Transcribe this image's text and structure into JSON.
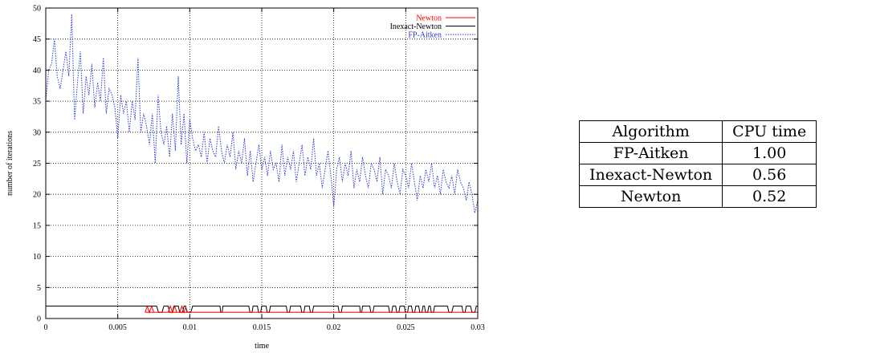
{
  "chart_data": {
    "type": "line",
    "xlabel": "time",
    "ylabel": "number of iterations",
    "xlim": [
      0,
      0.03
    ],
    "ylim": [
      0,
      50
    ],
    "x_ticks": [
      "0",
      "0.005",
      "0.01",
      "0.015",
      "0.02",
      "0.025",
      "0.03"
    ],
    "y_ticks": [
      "0",
      "5",
      "10",
      "15",
      "20",
      "25",
      "30",
      "35",
      "40",
      "45",
      "50"
    ],
    "grid": true,
    "legend_position": "top-right",
    "series": [
      {
        "name": "Newton",
        "color": "#ff0000",
        "style": "solid",
        "x": [
          0.0069,
          0.00705,
          0.0072,
          0.00735,
          0.0075,
          0.0085,
          0.00865,
          0.0088,
          0.00895,
          0.0091,
          0.0093,
          0.00945,
          0.0096,
          0.00975
        ],
        "y": [
          1,
          2,
          1,
          2,
          1,
          1,
          2,
          1,
          2,
          1,
          1,
          2,
          1,
          2
        ],
        "baseline_range": [
          0.0069,
          0.03
        ],
        "baseline_value": 1
      },
      {
        "name": "Inexact-Newton",
        "color": "#000000",
        "style": "solid",
        "baseline_value": 2,
        "dip_value": 1,
        "dips": [
          [
            0.0077,
            0.0082
          ],
          [
            0.0085,
            0.0089
          ],
          [
            0.0092,
            0.0096
          ],
          [
            0.0097,
            0.0102
          ],
          [
            0.0121,
            0.0123
          ],
          [
            0.0141,
            0.0144
          ],
          [
            0.0147,
            0.015
          ],
          [
            0.0153,
            0.0156
          ],
          [
            0.0167,
            0.017
          ],
          [
            0.0177,
            0.018
          ],
          [
            0.0183,
            0.0186
          ],
          [
            0.0203,
            0.0206
          ],
          [
            0.0218,
            0.022
          ],
          [
            0.0225,
            0.0228
          ],
          [
            0.0238,
            0.0241
          ],
          [
            0.0243,
            0.0246
          ],
          [
            0.0249,
            0.0252
          ],
          [
            0.0254,
            0.0257
          ],
          [
            0.0259,
            0.0262
          ],
          [
            0.0263,
            0.0266
          ],
          [
            0.0267,
            0.027
          ],
          [
            0.0279,
            0.0283
          ],
          [
            0.0289,
            0.0292
          ],
          [
            0.0295,
            0.0299
          ]
        ]
      },
      {
        "name": "FP-Aitken",
        "color": "#2a3bd6",
        "style": "dotted",
        "x": [
          0,
          0.0002,
          0.0004,
          0.0006,
          0.0008,
          0.001,
          0.0012,
          0.0014,
          0.0016,
          0.0018,
          0.002,
          0.0022,
          0.0024,
          0.0026,
          0.0028,
          0.003,
          0.0032,
          0.0034,
          0.0036,
          0.0038,
          0.004,
          0.0042,
          0.0044,
          0.0046,
          0.0048,
          0.005,
          0.0052,
          0.0054,
          0.0056,
          0.0058,
          0.006,
          0.0062,
          0.0064,
          0.0066,
          0.0068,
          0.007,
          0.0072,
          0.0074,
          0.0076,
          0.0078,
          0.008,
          0.0082,
          0.0084,
          0.0086,
          0.0088,
          0.009,
          0.0092,
          0.0094,
          0.0096,
          0.0098,
          0.01,
          0.0102,
          0.0104,
          0.0106,
          0.0108,
          0.011,
          0.0112,
          0.0114,
          0.0116,
          0.0118,
          0.012,
          0.0122,
          0.0124,
          0.0126,
          0.0128,
          0.013,
          0.0132,
          0.0134,
          0.0136,
          0.0138,
          0.014,
          0.0142,
          0.0144,
          0.0146,
          0.0148,
          0.015,
          0.0152,
          0.0154,
          0.0156,
          0.0158,
          0.016,
          0.0162,
          0.0164,
          0.0166,
          0.0168,
          0.017,
          0.0172,
          0.0174,
          0.0176,
          0.0178,
          0.018,
          0.0182,
          0.0184,
          0.0186,
          0.0188,
          0.019,
          0.0192,
          0.0194,
          0.0196,
          0.0198,
          0.02,
          0.0202,
          0.0204,
          0.0206,
          0.0208,
          0.021,
          0.0212,
          0.0214,
          0.0216,
          0.0218,
          0.022,
          0.0222,
          0.0224,
          0.0226,
          0.0228,
          0.023,
          0.0232,
          0.0234,
          0.0236,
          0.0238,
          0.024,
          0.0242,
          0.0244,
          0.0246,
          0.0248,
          0.025,
          0.0252,
          0.0254,
          0.0256,
          0.0258,
          0.026,
          0.0262,
          0.0264,
          0.0266,
          0.0268,
          0.027,
          0.0272,
          0.0274,
          0.0276,
          0.0278,
          0.028,
          0.0282,
          0.0284,
          0.0286,
          0.0288,
          0.029,
          0.0292,
          0.0294,
          0.0296,
          0.0298,
          0.03
        ],
        "y": [
          35,
          40,
          41,
          45,
          39,
          37,
          40,
          43,
          39,
          49,
          32,
          38,
          43,
          33,
          39,
          36,
          41,
          34,
          38,
          35,
          42,
          33,
          37,
          36,
          34,
          29,
          36,
          33,
          35,
          30,
          35,
          32,
          42,
          30,
          33,
          31,
          28,
          33,
          25,
          36,
          30,
          28,
          31,
          26,
          33,
          27,
          39,
          28,
          33,
          25,
          32,
          29,
          27,
          28,
          26,
          30,
          25,
          29,
          27,
          26,
          31,
          27,
          25,
          28,
          26,
          30,
          24,
          27,
          25,
          29,
          23,
          27,
          22,
          25,
          28,
          24,
          26,
          23,
          27,
          24,
          25,
          22,
          28,
          23,
          26,
          24,
          27,
          22,
          25,
          28,
          23,
          26,
          24,
          29,
          23,
          25,
          21,
          24,
          27,
          23,
          18,
          24,
          26,
          22,
          25,
          23,
          27,
          21,
          24,
          22,
          26,
          23,
          21,
          25,
          24,
          22,
          26,
          20,
          24,
          23,
          21,
          25,
          22,
          20,
          24,
          23,
          21,
          25,
          22,
          19,
          23,
          21,
          24,
          22,
          25,
          21,
          23,
          20,
          24,
          22,
          21,
          23,
          20,
          24,
          22,
          21,
          19,
          22,
          20,
          17,
          19
        ]
      }
    ]
  },
  "table": {
    "headers": [
      "Algorithm",
      "CPU time"
    ],
    "rows": [
      [
        "FP-Aitken",
        "1.00"
      ],
      [
        "Inexact-Newton",
        "0.56"
      ],
      [
        "Newton",
        "0.52"
      ]
    ]
  }
}
